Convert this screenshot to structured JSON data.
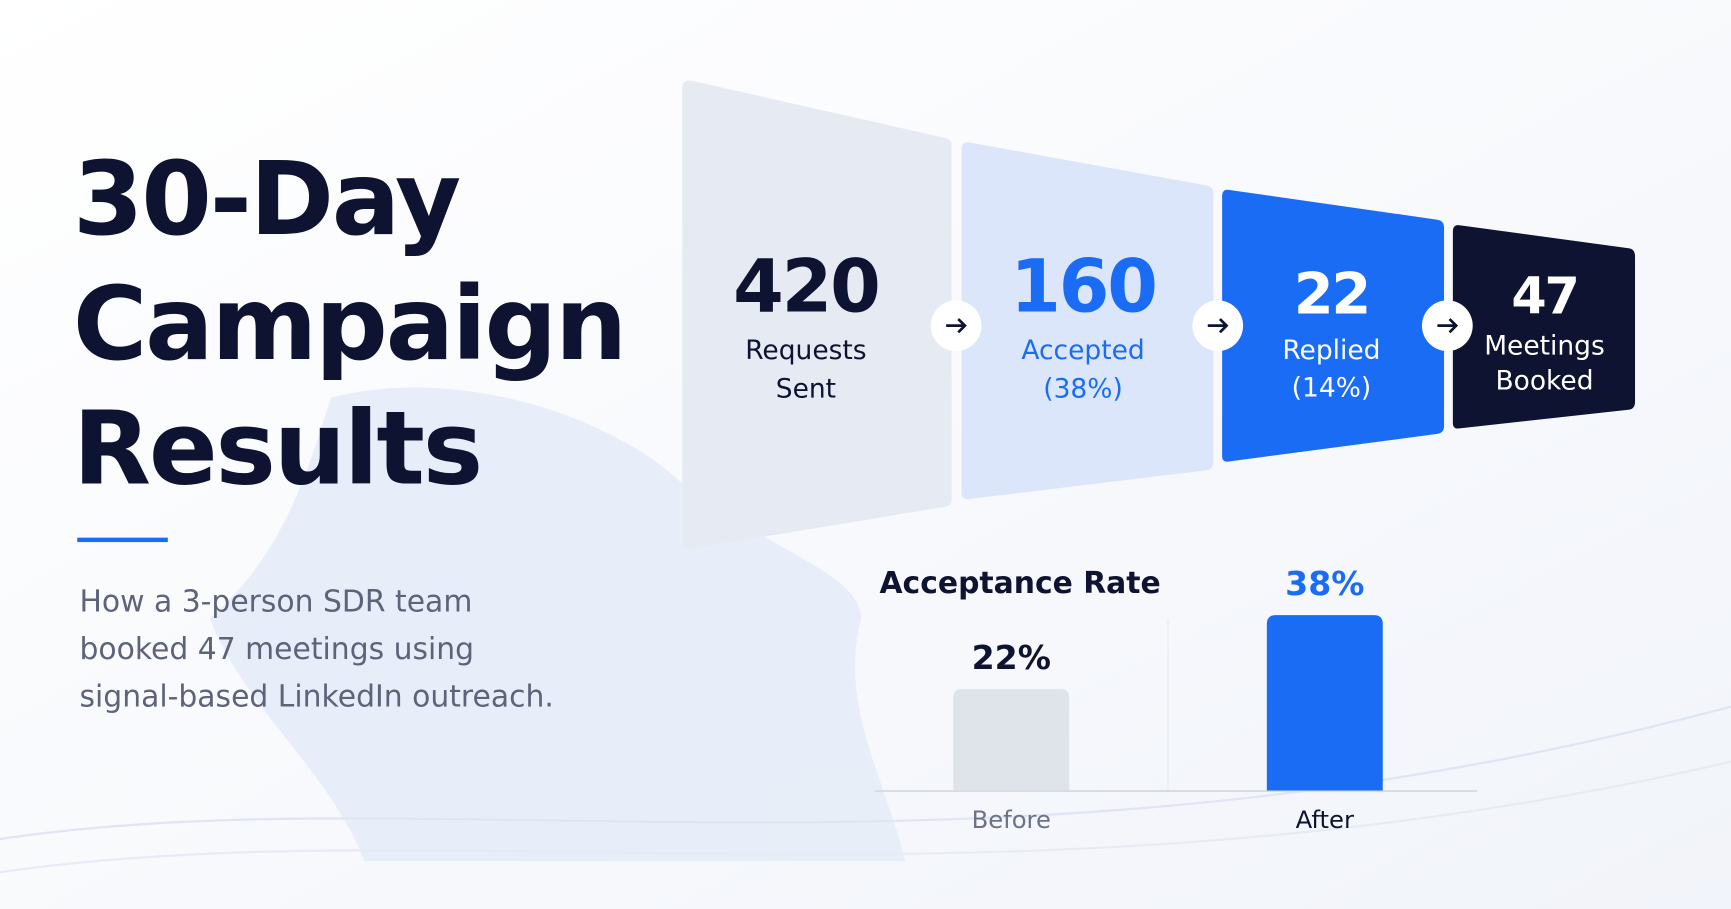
{
  "header": {
    "title_lines": [
      "30-Day",
      "Campaign",
      "Results"
    ],
    "subtitle_lines": [
      "How a 3-person SDR team",
      "booked 47 meetings using",
      "signal-based LinkedIn outreach."
    ]
  },
  "funnel": {
    "stages": [
      {
        "value": "420",
        "label_lines": [
          "Requests",
          "Sent"
        ]
      },
      {
        "value": "160",
        "label_lines": [
          "Accepted",
          "(38%)"
        ]
      },
      {
        "value": "22",
        "label_lines": [
          "Replied",
          "(14%)"
        ]
      },
      {
        "value": "47",
        "label_lines": [
          "Meetings",
          "Booked"
        ]
      }
    ]
  },
  "chart_data": {
    "type": "bar",
    "title": "Acceptance Rate",
    "categories": [
      "Before",
      "After"
    ],
    "values": [
      22,
      38
    ],
    "value_labels": [
      "22%",
      "38%"
    ],
    "colors": [
      "#dfe3ea",
      "#1a6cf5"
    ]
  }
}
